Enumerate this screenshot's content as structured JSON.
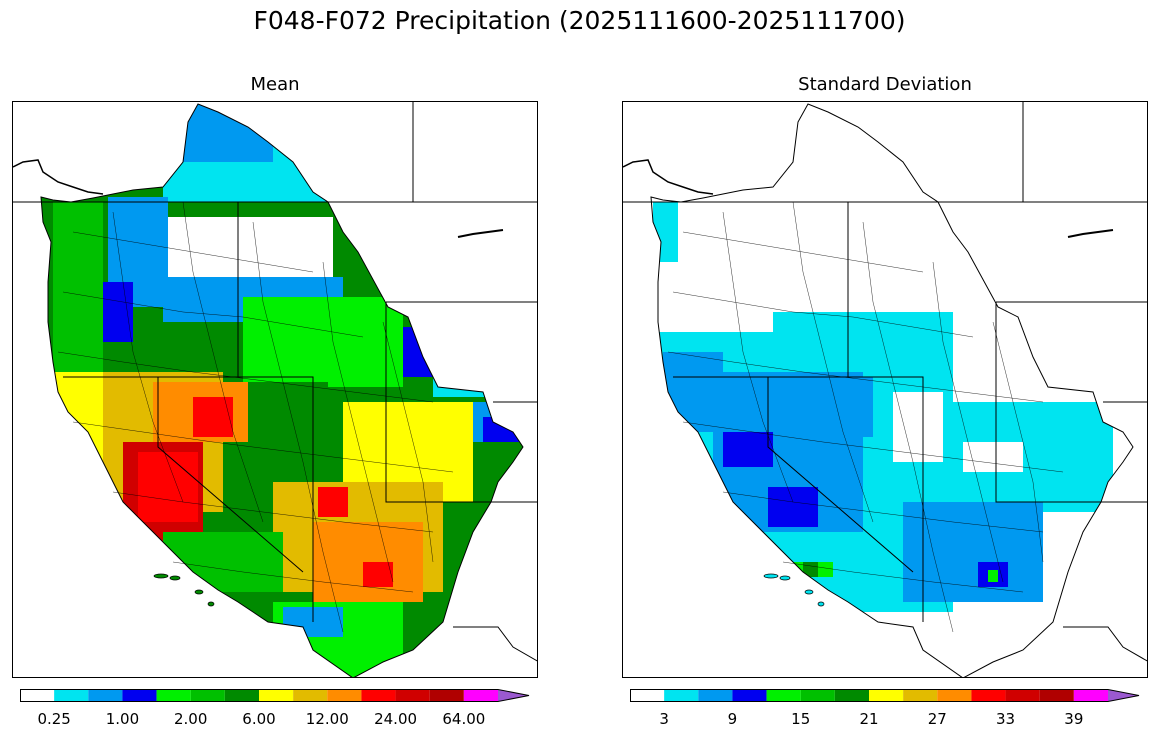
{
  "figure": {
    "title": "F048-F072 Precipitation (2025111600-2025111700)"
  },
  "panels": [
    {
      "id": "mean",
      "title": "Mean",
      "colorbar": {
        "colors": [
          "#ffffff",
          "#00e4f0",
          "#0099f0",
          "#0000f0",
          "#00f000",
          "#00c000",
          "#008a00",
          "#ffff00",
          "#e2bb00",
          "#ff8c00",
          "#ff0000",
          "#d00000",
          "#b00000",
          "#ff00ff",
          "#9b59d0"
        ],
        "tick_labels": [
          "0.25",
          "1.00",
          "2.00",
          "6.00",
          "12.00",
          "24.00",
          "64.00"
        ],
        "extend": "max"
      }
    },
    {
      "id": "stddev",
      "title": "Standard Deviation",
      "colorbar": {
        "colors": [
          "#ffffff",
          "#00e4f0",
          "#0099f0",
          "#0000f0",
          "#00f000",
          "#00c000",
          "#008a00",
          "#ffff00",
          "#e2bb00",
          "#ff8c00",
          "#ff0000",
          "#d00000",
          "#b00000",
          "#ff00ff",
          "#9b59d0"
        ],
        "tick_labels": [
          "3",
          "9",
          "15",
          "21",
          "27",
          "33",
          "39"
        ],
        "extend": "max"
      }
    }
  ]
}
